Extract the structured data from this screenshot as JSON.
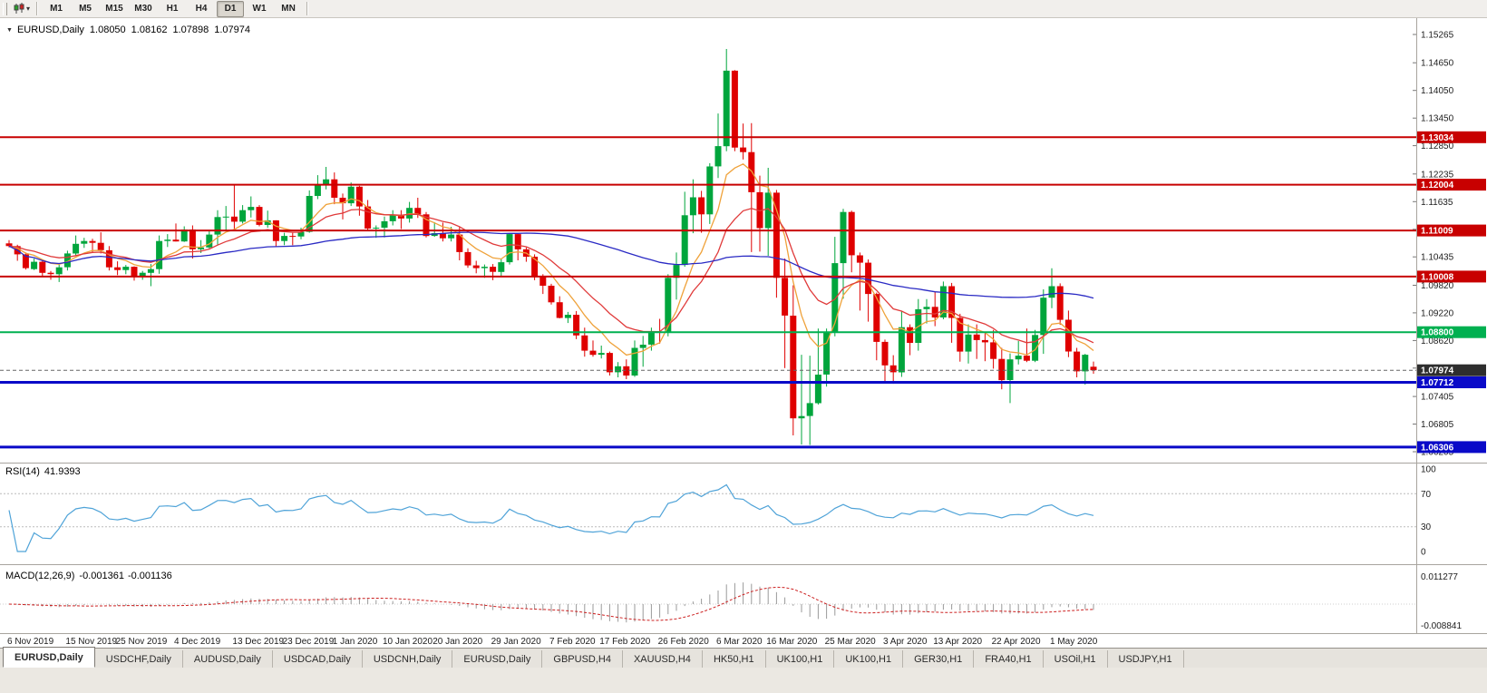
{
  "toolbar": {
    "timeframes": [
      "M1",
      "M5",
      "M15",
      "M30",
      "H1",
      "H4",
      "D1",
      "W1",
      "MN"
    ],
    "active_timeframe": "D1",
    "caret_glyph": "▾"
  },
  "chart_title": {
    "collapse_glyph": "▼",
    "symbol": "EURUSD,Daily",
    "open": "1.08050",
    "high": "1.08162",
    "low": "1.07898",
    "close": "1.07974"
  },
  "price_axis": {
    "labels": [
      "1.15265",
      "1.14650",
      "1.14050",
      "1.13450",
      "1.12850",
      "1.12235",
      "1.11635",
      "1.11035",
      "1.10435",
      "1.09820",
      "1.09220",
      "1.08620",
      "1.08020",
      "1.07405",
      "1.06805",
      "1.06205"
    ]
  },
  "date_axis": {
    "labels": [
      [
        "6 Nov 2019",
        0
      ],
      [
        "15 Nov 2019",
        7
      ],
      [
        "25 Nov 2019",
        13
      ],
      [
        "4 Dec 2019",
        20
      ],
      [
        "13 Dec 2019",
        27
      ],
      [
        "23 Dec 2019",
        33
      ],
      [
        "1 Jan 2020",
        39
      ],
      [
        "10 Jan 2020",
        45
      ],
      [
        "20 Jan 2020",
        51
      ],
      [
        "29 Jan 2020",
        58
      ],
      [
        "7 Feb 2020",
        65
      ],
      [
        "17 Feb 2020",
        71
      ],
      [
        "26 Feb 2020",
        78
      ],
      [
        "6 Mar 2020",
        85
      ],
      [
        "16 Mar 2020",
        91
      ],
      [
        "25 Mar 2020",
        98
      ],
      [
        "3 Apr 2020",
        105
      ],
      [
        "13 Apr 2020",
        111
      ],
      [
        "22 Apr 2020",
        118
      ],
      [
        "1 May 2020",
        125
      ]
    ]
  },
  "indicators": {
    "rsi": {
      "label": "RSI(14)",
      "value": "41.9393",
      "scale": [
        "100",
        "70",
        "30",
        "0"
      ],
      "line_color": "#4fa3d8"
    },
    "macd": {
      "label": "MACD(12,26,9)",
      "value_main": "-0.001361",
      "value_signal": "-0.001136",
      "scale_max": "0.011277",
      "scale_min": "-0.008841",
      "histogram_color": "#9a9a9a",
      "signal_color": "#cc2020"
    }
  },
  "chart_data": {
    "type": "candlestick",
    "title": "EURUSD,Daily",
    "up_color": "#00a53c",
    "down_color": "#df0000",
    "y_range": {
      "top": 1.15265,
      "bottom": 1.06205
    },
    "current_price": 1.07974,
    "last_ohlc": {
      "open": 1.0805,
      "high": 1.08162,
      "low": 1.07898,
      "close": 1.07974
    },
    "levels": [
      {
        "price": 1.13034,
        "color": "#c80000",
        "width": 2
      },
      {
        "price": 1.12004,
        "color": "#c80000",
        "width": 2
      },
      {
        "price": 1.11009,
        "color": "#c80000",
        "width": 2
      },
      {
        "price": 1.10008,
        "color": "#c80000",
        "width": 2
      },
      {
        "price": 1.088,
        "color": "#00b050",
        "width": 2
      },
      {
        "price": 1.07712,
        "color": "#0a0ac8",
        "width": 3
      },
      {
        "price": 1.06306,
        "color": "#0a0ac8",
        "width": 3
      }
    ],
    "moving_averages": [
      {
        "name": "fast",
        "method": "ema",
        "period": 7,
        "color": "#efa23a"
      },
      {
        "name": "medium",
        "method": "ema",
        "period": 15,
        "color": "#e03a3a"
      },
      {
        "name": "slow",
        "method": "sma",
        "period": 50,
        "color": "#2a2ac4"
      }
    ],
    "candles": [
      [
        1.1073,
        1.108,
        1.1064,
        1.1067
      ],
      [
        1.1067,
        1.107,
        1.1035,
        1.1049
      ],
      [
        1.1049,
        1.1053,
        1.1016,
        1.1019
      ],
      [
        1.1017,
        1.104,
        1.1015,
        1.1033
      ],
      [
        1.1033,
        1.1037,
        1.1002,
        1.1009
      ],
      [
        1.1009,
        1.1013,
        1.0994,
        1.1006
      ],
      [
        1.1006,
        1.1027,
        1.0989,
        1.1021
      ],
      [
        1.1021,
        1.1057,
        1.1014,
        1.1051
      ],
      [
        1.1051,
        1.109,
        1.1046,
        1.1072
      ],
      [
        1.1072,
        1.1085,
        1.1063,
        1.1078
      ],
      [
        1.1078,
        1.1083,
        1.1052,
        1.1074
      ],
      [
        1.1074,
        1.1097,
        1.1051,
        1.1058
      ],
      [
        1.1058,
        1.1067,
        1.1014,
        1.1021
      ],
      [
        1.1021,
        1.1034,
        1.1004,
        1.1015
      ],
      [
        1.1015,
        1.1026,
        1.1006,
        1.1022
      ],
      [
        1.1022,
        1.1023,
        1.0992,
        1.1001
      ],
      [
        1.1001,
        1.1013,
        1.0994,
        1.1009
      ],
      [
        1.1009,
        1.1028,
        1.098,
        1.1017
      ],
      [
        1.1017,
        1.109,
        1.1007,
        1.1078
      ],
      [
        1.1078,
        1.1093,
        1.1065,
        1.1081
      ],
      [
        1.1081,
        1.1116,
        1.1077,
        1.1077
      ],
      [
        1.1077,
        1.111,
        1.1076,
        1.1103
      ],
      [
        1.1103,
        1.1112,
        1.104,
        1.106
      ],
      [
        1.106,
        1.108,
        1.1052,
        1.1064
      ],
      [
        1.1064,
        1.11,
        1.1062,
        1.1092
      ],
      [
        1.1092,
        1.1145,
        1.107,
        1.113
      ],
      [
        1.113,
        1.1154,
        1.1102,
        1.1131
      ],
      [
        1.1131,
        1.1199,
        1.1103,
        1.112
      ],
      [
        1.112,
        1.1156,
        1.1116,
        1.1145
      ],
      [
        1.1145,
        1.1175,
        1.1129,
        1.1152
      ],
      [
        1.1152,
        1.1156,
        1.111,
        1.1113
      ],
      [
        1.1113,
        1.1144,
        1.1107,
        1.1123
      ],
      [
        1.1123,
        1.1123,
        1.1066,
        1.1078
      ],
      [
        1.1078,
        1.1096,
        1.1069,
        1.1089
      ],
      [
        1.1089,
        1.1096,
        1.1069,
        1.1088
      ],
      [
        1.1088,
        1.1107,
        1.1082,
        1.1098
      ],
      [
        1.1098,
        1.1188,
        1.1096,
        1.1176
      ],
      [
        1.1176,
        1.1221,
        1.1169,
        1.1199
      ],
      [
        1.1199,
        1.1239,
        1.119,
        1.1212
      ],
      [
        1.1212,
        1.1227,
        1.1158,
        1.1172
      ],
      [
        1.1172,
        1.1181,
        1.1125,
        1.116
      ],
      [
        1.116,
        1.1205,
        1.1154,
        1.1196
      ],
      [
        1.1196,
        1.1198,
        1.1133,
        1.1153
      ],
      [
        1.1153,
        1.1167,
        1.1102,
        1.1105
      ],
      [
        1.1105,
        1.1112,
        1.1085,
        1.1107
      ],
      [
        1.1107,
        1.1131,
        1.1086,
        1.1121
      ],
      [
        1.1121,
        1.1145,
        1.1112,
        1.1134
      ],
      [
        1.1134,
        1.1145,
        1.1104,
        1.1127
      ],
      [
        1.1127,
        1.1163,
        1.1118,
        1.115
      ],
      [
        1.115,
        1.1172,
        1.1128,
        1.1136
      ],
      [
        1.1136,
        1.1141,
        1.1086,
        1.1089
      ],
      [
        1.1089,
        1.1119,
        1.1087,
        1.1095
      ],
      [
        1.1095,
        1.1118,
        1.1077,
        1.1084
      ],
      [
        1.1084,
        1.1109,
        1.1077,
        1.1092
      ],
      [
        1.1092,
        1.1109,
        1.1036,
        1.1054
      ],
      [
        1.1054,
        1.1062,
        1.102,
        1.1025
      ],
      [
        1.1025,
        1.1035,
        1.1008,
        1.1019
      ],
      [
        1.1019,
        1.1027,
        1.0998,
        1.1022
      ],
      [
        1.1022,
        1.1028,
        1.0993,
        1.1011
      ],
      [
        1.1011,
        1.1039,
        1.1002,
        1.1032
      ],
      [
        1.1032,
        1.1095,
        1.1027,
        1.1093
      ],
      [
        1.1093,
        1.1094,
        1.1036,
        1.106
      ],
      [
        1.106,
        1.1064,
        1.1033,
        1.1044
      ],
      [
        1.1044,
        1.1049,
        1.0993,
        1.1001
      ],
      [
        1.1001,
        1.1006,
        1.0963,
        1.0981
      ],
      [
        1.0981,
        1.0985,
        1.094,
        1.0945
      ],
      [
        1.0945,
        1.0958,
        1.091,
        1.0911
      ],
      [
        1.0911,
        1.0924,
        1.09,
        1.0918
      ],
      [
        1.0918,
        1.0926,
        1.0865,
        1.0873
      ],
      [
        1.0873,
        1.089,
        1.0827,
        1.084
      ],
      [
        1.084,
        1.0862,
        1.0827,
        1.0831
      ],
      [
        1.0831,
        1.0851,
        1.0823,
        1.0835
      ],
      [
        1.0835,
        1.0838,
        1.0786,
        1.0793
      ],
      [
        1.0793,
        1.0815,
        1.0782,
        1.0806
      ],
      [
        1.0806,
        1.0821,
        1.0778,
        1.0786
      ],
      [
        1.0786,
        1.0862,
        1.0783,
        1.0846
      ],
      [
        1.0846,
        1.0872,
        1.0805,
        1.0853
      ],
      [
        1.0853,
        1.089,
        1.084,
        1.0881
      ],
      [
        1.0881,
        1.0909,
        1.0855,
        1.088
      ],
      [
        1.088,
        1.1006,
        1.0871,
        1.0998
      ],
      [
        1.0998,
        1.1053,
        1.0951,
        1.1026
      ],
      [
        1.1026,
        1.1185,
        1.1022,
        1.1134
      ],
      [
        1.1134,
        1.1212,
        1.1095,
        1.1173
      ],
      [
        1.1173,
        1.1187,
        1.1096,
        1.1136
      ],
      [
        1.1136,
        1.1247,
        1.1115,
        1.124
      ],
      [
        1.124,
        1.1355,
        1.1215,
        1.1284
      ],
      [
        1.1284,
        1.1495,
        1.1273,
        1.1448
      ],
      [
        1.1448,
        1.1449,
        1.1273,
        1.1281
      ],
      [
        1.1281,
        1.1333,
        1.1255,
        1.1271
      ],
      [
        1.1271,
        1.1334,
        1.1054,
        1.1184
      ],
      [
        1.1184,
        1.122,
        1.1055,
        1.1106
      ],
      [
        1.1106,
        1.1237,
        1.1046,
        1.1183
      ],
      [
        1.1183,
        1.1189,
        1.0955,
        1.0998
      ],
      [
        1.0998,
        1.104,
        1.0802,
        1.0916
      ],
      [
        1.0916,
        1.0982,
        1.0656,
        1.0693
      ],
      [
        1.0693,
        1.0831,
        1.0636,
        1.0698
      ],
      [
        1.0698,
        1.0829,
        1.0635,
        1.0726
      ],
      [
        1.0726,
        1.0888,
        1.0723,
        1.0788
      ],
      [
        1.0788,
        1.0888,
        1.0762,
        1.088
      ],
      [
        1.088,
        1.1087,
        1.0871,
        1.103
      ],
      [
        1.103,
        1.1148,
        1.0953,
        1.1141
      ],
      [
        1.1141,
        1.1144,
        1.101,
        1.1047
      ],
      [
        1.1047,
        1.1053,
        1.0927,
        1.1031
      ],
      [
        1.1031,
        1.1038,
        1.0903,
        1.0963
      ],
      [
        1.0963,
        1.0966,
        1.0819,
        1.0859
      ],
      [
        1.0859,
        1.0864,
        1.0773,
        1.0808
      ],
      [
        1.0808,
        1.083,
        1.0768,
        1.0793
      ],
      [
        1.0793,
        1.0926,
        1.0783,
        1.0891
      ],
      [
        1.0891,
        1.0897,
        1.083,
        1.0857
      ],
      [
        1.0857,
        1.0952,
        1.084,
        1.093
      ],
      [
        1.093,
        1.0952,
        1.0899,
        1.0935
      ],
      [
        1.0935,
        1.0968,
        1.0893,
        1.0912
      ],
      [
        1.0912,
        1.099,
        1.0908,
        1.098
      ],
      [
        1.098,
        1.0987,
        1.0857,
        1.0911
      ],
      [
        1.0911,
        1.092,
        1.0816,
        1.0838
      ],
      [
        1.0838,
        1.0897,
        1.0812,
        1.0875
      ],
      [
        1.0875,
        1.0897,
        1.0822,
        1.0863
      ],
      [
        1.0863,
        1.0879,
        1.0817,
        1.0858
      ],
      [
        1.0858,
        1.0885,
        1.0801,
        1.0822
      ],
      [
        1.0822,
        1.0846,
        1.0756,
        1.0776
      ],
      [
        1.0776,
        1.0834,
        1.0726,
        1.0821
      ],
      [
        1.0821,
        1.0861,
        1.081,
        1.0829
      ],
      [
        1.0829,
        1.0888,
        1.0815,
        1.0818
      ],
      [
        1.0818,
        1.0885,
        1.0815,
        1.0874
      ],
      [
        1.0874,
        1.0973,
        1.0833,
        1.0955
      ],
      [
        1.0955,
        1.1019,
        1.0932,
        1.098
      ],
      [
        1.098,
        1.0986,
        1.0896,
        1.0907
      ],
      [
        1.0907,
        1.0927,
        1.0826,
        1.0838
      ],
      [
        1.0838,
        1.0846,
        1.0782,
        1.0795
      ],
      [
        1.0795,
        1.0833,
        1.0766,
        1.0831
      ],
      [
        1.0805,
        1.08162,
        1.07898,
        1.07974
      ]
    ]
  },
  "tabs": [
    {
      "label": "EURUSD,Daily",
      "active": true
    },
    {
      "label": "USDCHF,Daily",
      "active": false
    },
    {
      "label": "AUDUSD,Daily",
      "active": false
    },
    {
      "label": "USDCAD,Daily",
      "active": false
    },
    {
      "label": "USDCNH,Daily",
      "active": false
    },
    {
      "label": "EURUSD,Daily",
      "active": false
    },
    {
      "label": "GBPUSD,H4",
      "active": false
    },
    {
      "label": "XAUUSD,H4",
      "active": false
    },
    {
      "label": "HK50,H1",
      "active": false
    },
    {
      "label": "UK100,H1",
      "active": false
    },
    {
      "label": "UK100,H1",
      "active": false
    },
    {
      "label": "GER30,H1",
      "active": false
    },
    {
      "label": "FRA40,H1",
      "active": false
    },
    {
      "label": "USOil,H1",
      "active": false
    },
    {
      "label": "USDJPY,H1",
      "active": false
    }
  ]
}
